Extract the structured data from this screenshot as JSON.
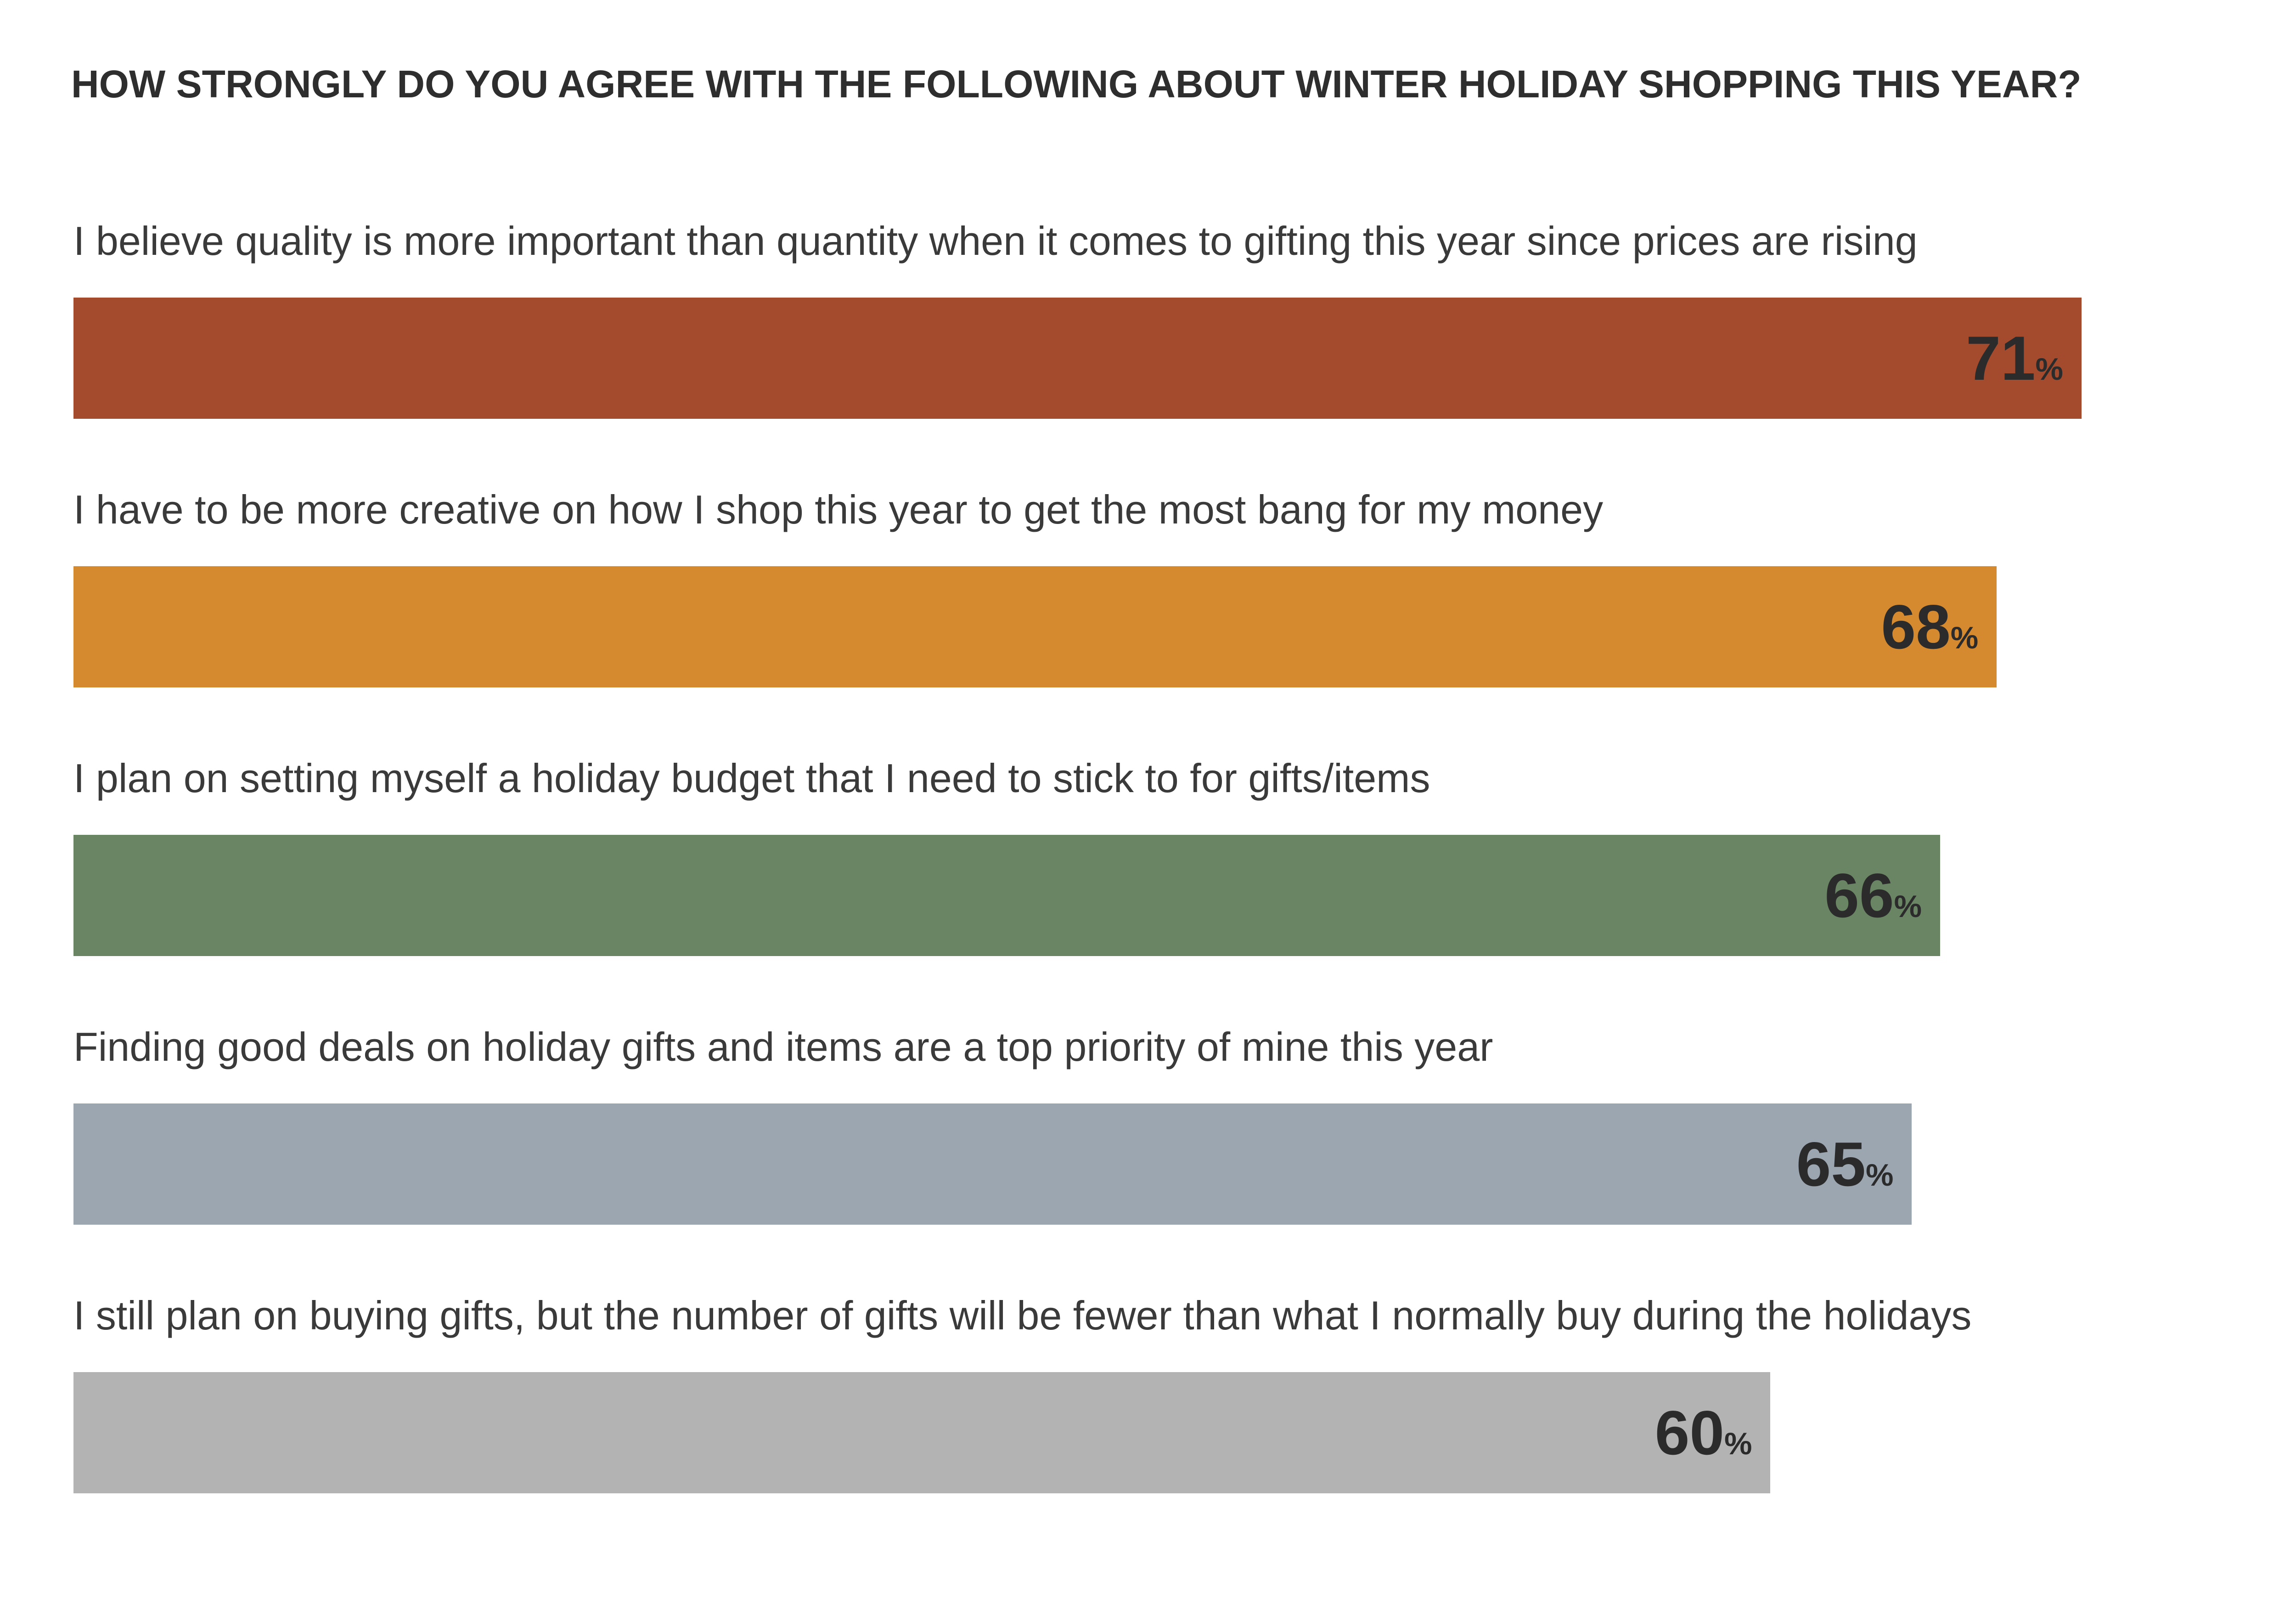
{
  "chart_data": {
    "type": "bar",
    "orientation": "horizontal",
    "title": "HOW STRONGLY DO YOU AGREE WITH THE FOLLOWING ABOUT WINTER HOLIDAY SHOPPING THIS YEAR?",
    "categories": [
      "I believe quality is more important than quantity when it comes to gifting this year since prices are rising",
      "I have to be more creative on how I shop this year to get the most bang for my money",
      "I plan on setting myself a holiday budget that I need to stick to for gifts/items",
      "Finding good deals on holiday gifts and items are a top priority of mine this year",
      "I still plan on buying gifts, but the number of gifts will be fewer than what I normally buy during the holidays"
    ],
    "values": [
      71,
      68,
      66,
      65,
      60
    ],
    "value_labels": [
      "71",
      "68",
      "66",
      "65",
      "60"
    ],
    "value_suffix": "%",
    "colors": [
      "#a44a2d",
      "#d68a2f",
      "#6a8564",
      "#9ba6b1",
      "#b3b3b3"
    ],
    "xlim": [
      0,
      100
    ],
    "grid": false,
    "legend": "none"
  }
}
